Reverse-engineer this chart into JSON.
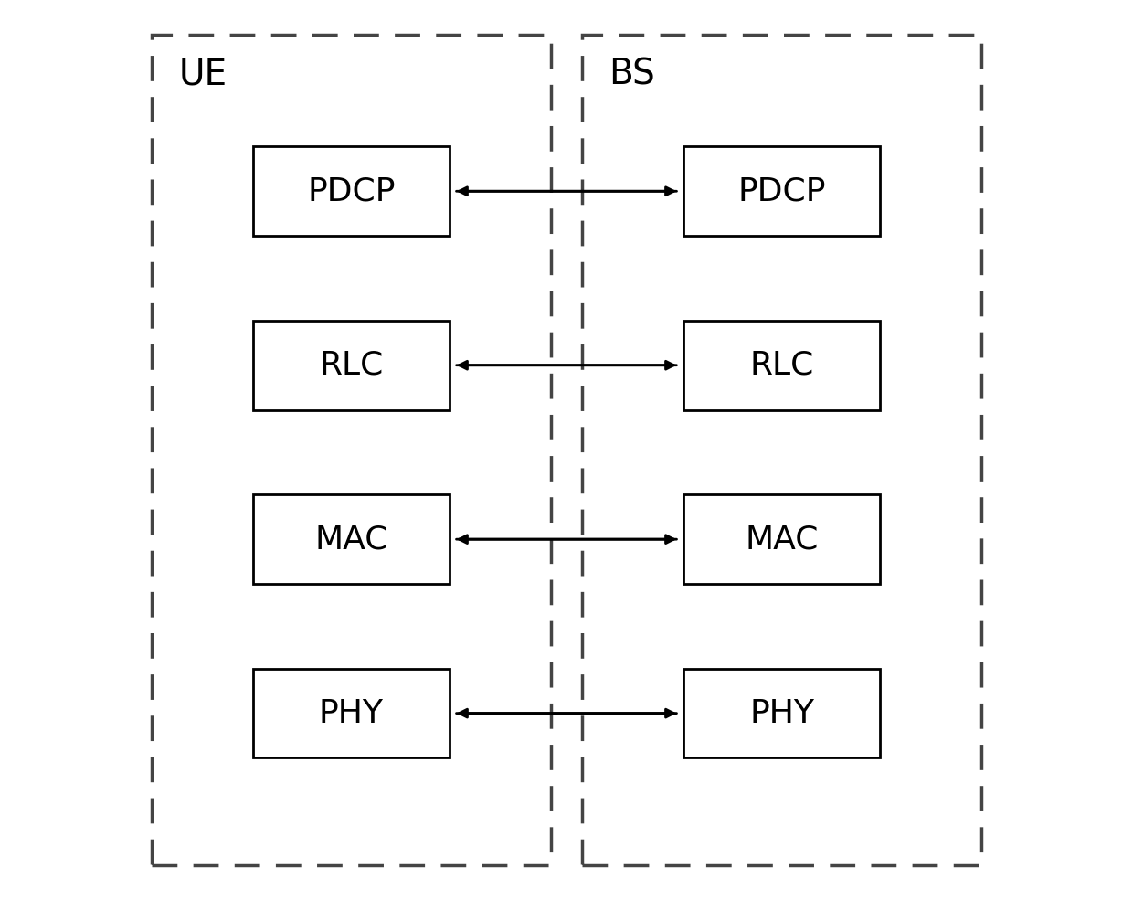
{
  "background_color": "#ffffff",
  "fig_width": 12.4,
  "fig_height": 9.85,
  "dpi": 100,
  "ue_label": {
    "text": "UE",
    "fontsize": 28
  },
  "bs_label": {
    "text": "BS",
    "fontsize": 28
  },
  "ue_blocks": [
    {
      "label": "PDCP"
    },
    {
      "label": "RLC"
    },
    {
      "label": "MAC"
    },
    {
      "label": "PHY"
    }
  ],
  "bs_blocks": [
    {
      "label": "PDCP"
    },
    {
      "label": "RLC"
    },
    {
      "label": "MAC"
    },
    {
      "label": "PHY"
    }
  ],
  "arrow_color": "#000000",
  "arrow_linewidth": 2.0,
  "arrow_mutation_scale": 16,
  "block_linewidth": 2.0,
  "block_edgecolor": "#000000",
  "block_facecolor": "#ffffff",
  "block_fontsize": 26,
  "dashed_linewidth": 2.5,
  "dashed_color": "#444444",
  "dashed_dash": [
    8,
    5
  ]
}
